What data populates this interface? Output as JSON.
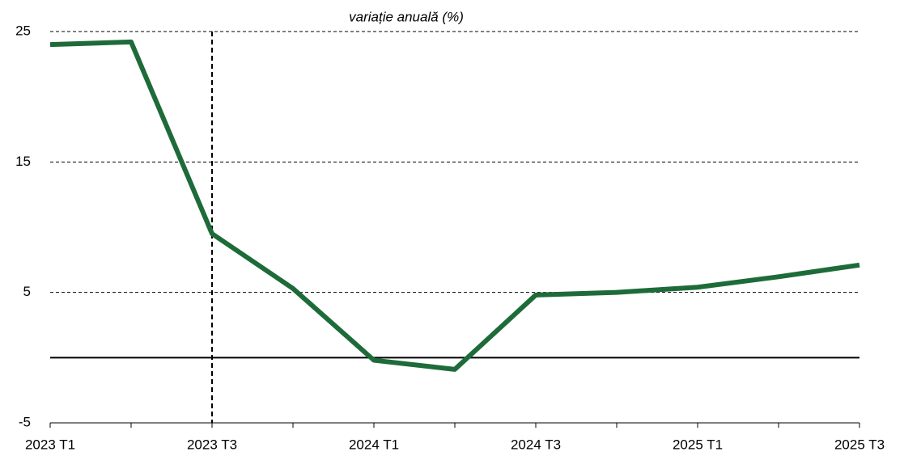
{
  "chart_data": {
    "type": "line",
    "title": "variație anuală (%)",
    "categories": [
      "2023 T1",
      null,
      "2023 T3",
      null,
      "2024 T1",
      null,
      "2024 T3",
      null,
      "2025 T1",
      null,
      "2025 T3"
    ],
    "values": [
      24.0,
      24.2,
      9.5,
      5.3,
      -0.2,
      -0.9,
      4.8,
      5.0,
      5.4,
      6.2,
      7.1
    ],
    "color": "#1e6b3a",
    "ylim": [
      -5,
      25
    ],
    "yticks": [
      25,
      15,
      5,
      -5
    ],
    "grid": true,
    "zero_line": true,
    "vline_at_index": 2
  }
}
